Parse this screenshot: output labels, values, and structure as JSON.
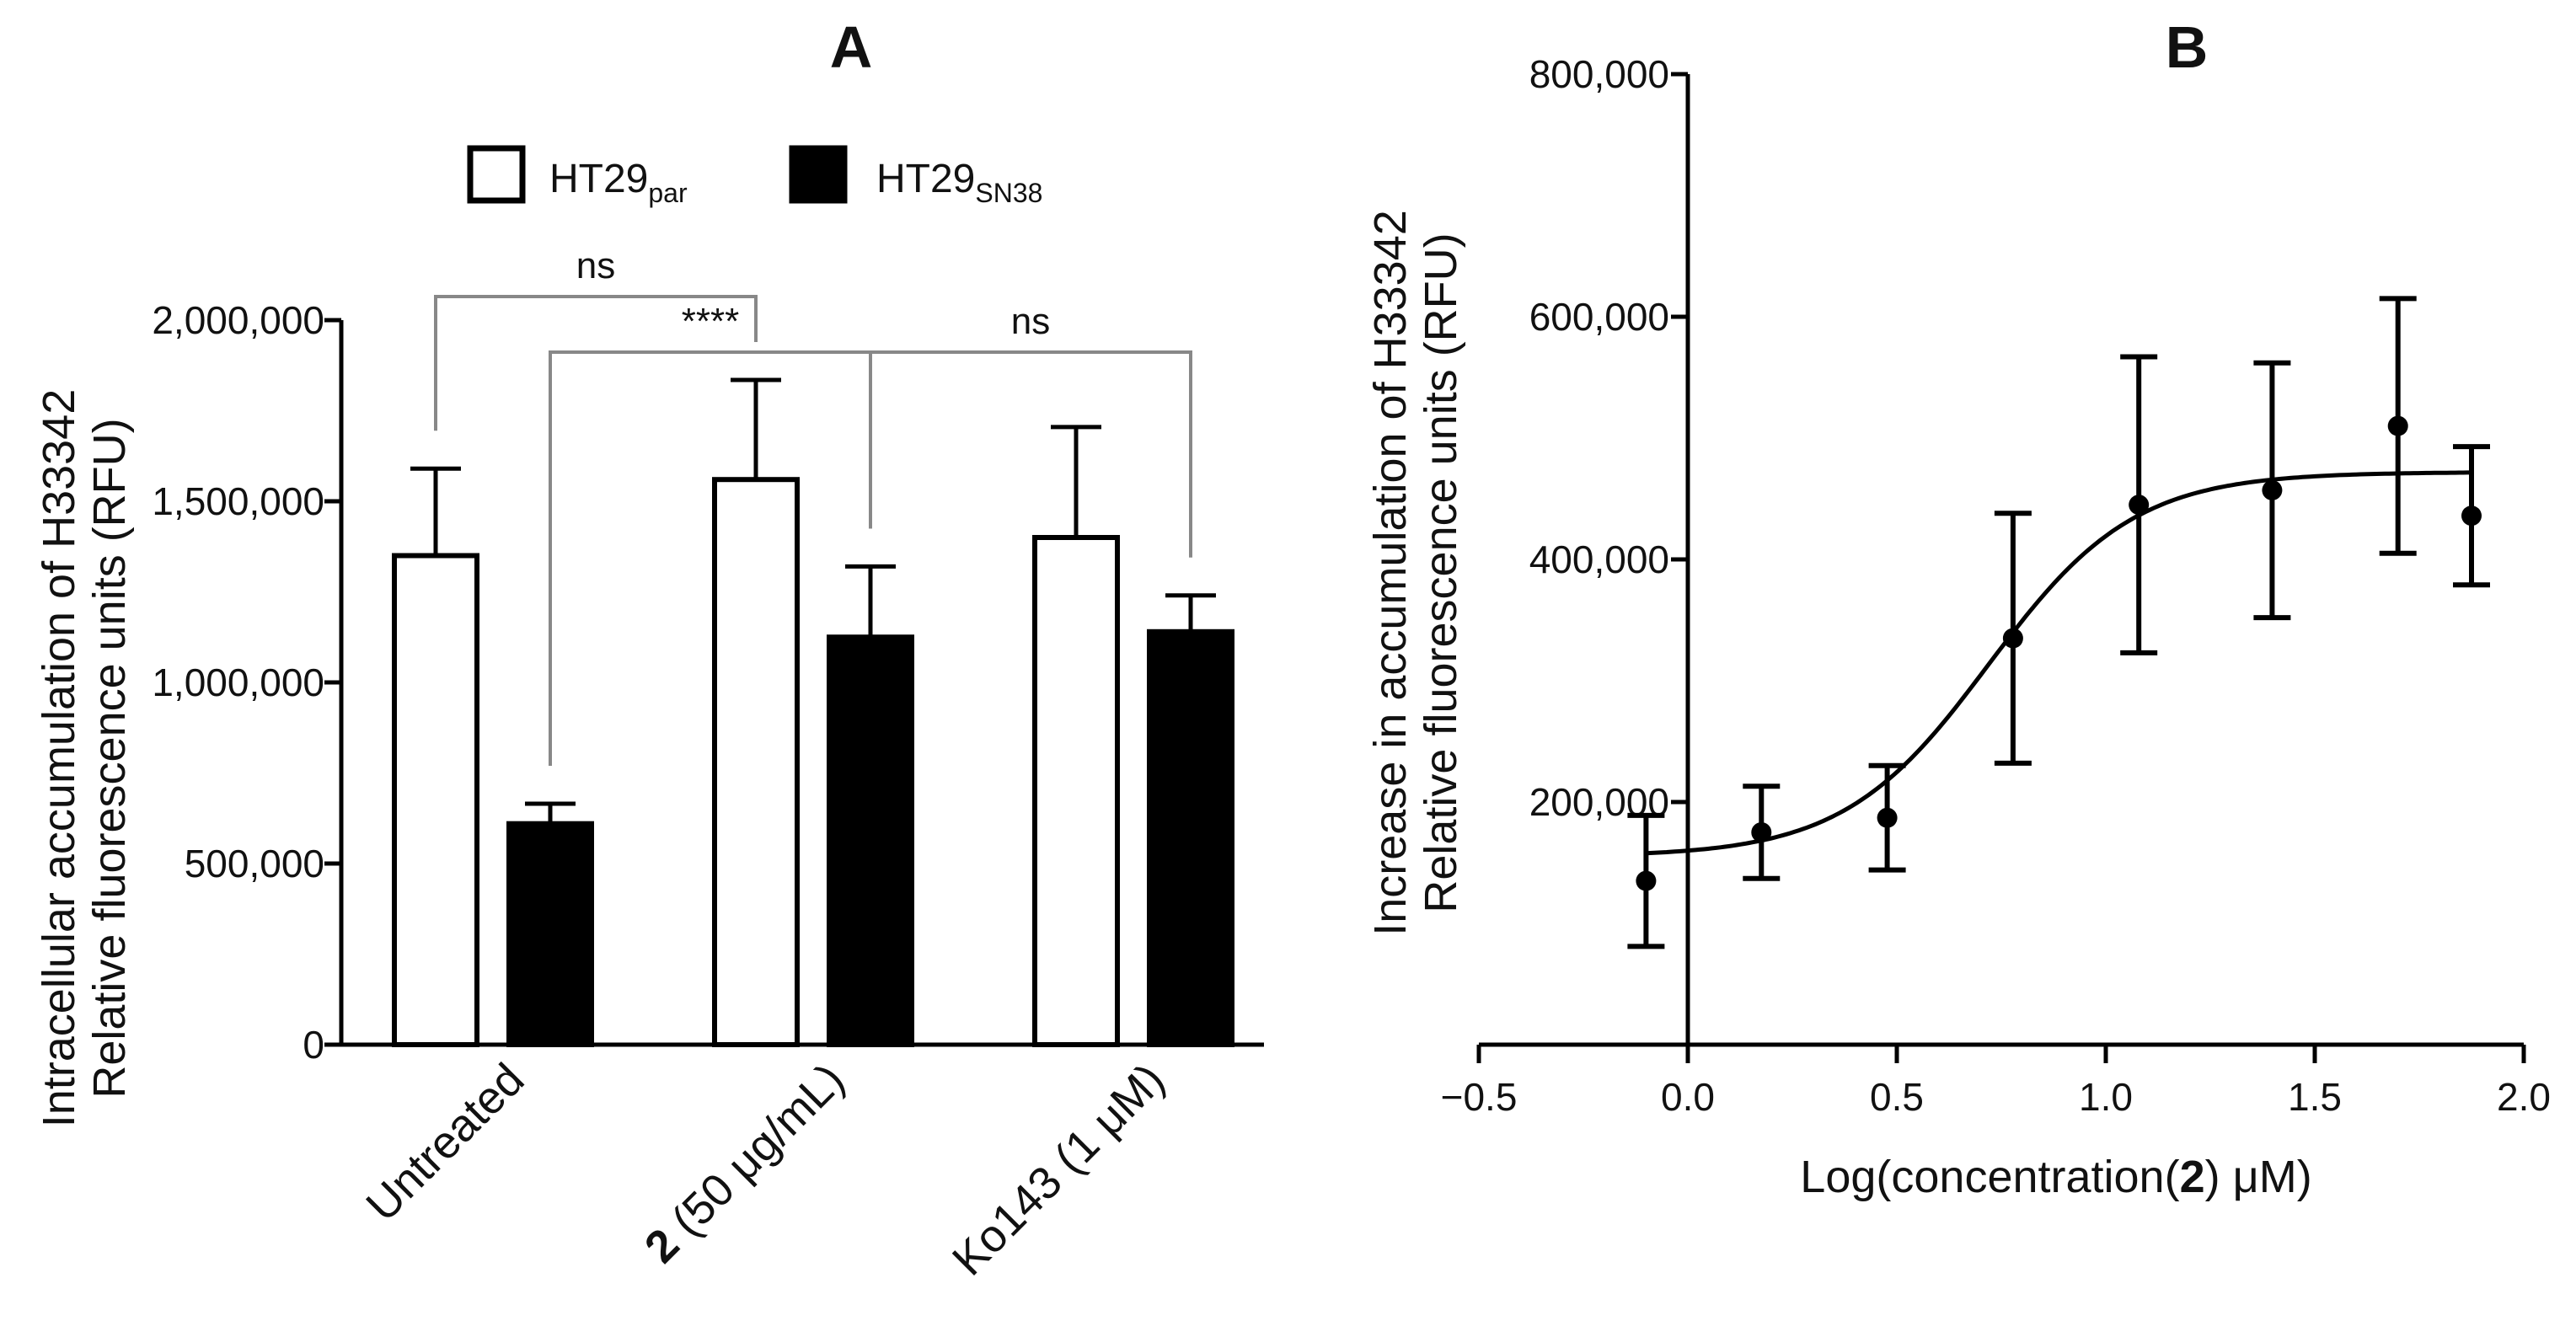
{
  "chart_data": [
    {
      "panel": "A",
      "type": "bar",
      "title": "A",
      "ylabel_line1": "Intracellular accumulation of H33342",
      "ylabel_line2": "Relative fluorescence units (RFU)",
      "xlabel": "",
      "ylim": [
        0,
        2000000
      ],
      "yticks": [
        0,
        500000,
        1000000,
        1500000,
        2000000
      ],
      "ytick_labels": [
        "0",
        "500,000",
        "1,000,000",
        "1,500,000",
        "2,000,000"
      ],
      "categories": [
        {
          "bold": "",
          "text": "Untreated"
        },
        {
          "bold": "2",
          "text": " (50 μg/mL)"
        },
        {
          "bold": "",
          "text": "Ko143 (1 μM)"
        }
      ],
      "series": [
        {
          "name": "HT29",
          "sub": "par",
          "fill": "#ffffff",
          "values": [
            1350000,
            1560000,
            1400000
          ],
          "errors": [
            240000,
            275000,
            305000
          ]
        },
        {
          "name": "HT29",
          "sub": "SN38",
          "fill": "#000000",
          "values": [
            610000,
            1125000,
            1140000
          ],
          "errors": [
            55000,
            195000,
            100000
          ]
        }
      ],
      "significance": [
        {
          "label": "ns",
          "from": [
            0,
            0
          ],
          "to": [
            1,
            0
          ]
        },
        {
          "label": "****",
          "from": [
            0,
            1
          ],
          "to": [
            1,
            1
          ]
        },
        {
          "label": "ns",
          "from": [
            1,
            1
          ],
          "to": [
            2,
            1
          ]
        }
      ]
    },
    {
      "panel": "B",
      "type": "scatter",
      "title": "B",
      "ylabel_line1": "Increase in accumulation of H33342",
      "ylabel_line2": "Relative fluorescence units (RFU)",
      "xlabel_pre": "Log(concentration(",
      "xlabel_bold": "2",
      "xlabel_post": ") μM)",
      "xlim": [
        -0.5,
        2.0
      ],
      "ylim": [
        0,
        800000
      ],
      "xticks": [
        -0.5,
        0.0,
        0.5,
        1.0,
        1.5,
        2.0
      ],
      "xtick_labels": [
        "−0.5",
        "0.0",
        "0.5",
        "1.0",
        "1.5",
        "2.0"
      ],
      "yticks": [
        200000,
        400000,
        600000,
        800000
      ],
      "ytick_labels": [
        "200,000",
        "400,000",
        "600,000",
        "800,000"
      ],
      "points": [
        {
          "x": -0.1,
          "y": 135000,
          "err": 54000
        },
        {
          "x": 0.176,
          "y": 175000,
          "err": 38000
        },
        {
          "x": 0.477,
          "y": 187000,
          "err": 43000
        },
        {
          "x": 0.778,
          "y": 335000,
          "err": 103000
        },
        {
          "x": 1.079,
          "y": 445000,
          "err": 122000
        },
        {
          "x": 1.398,
          "y": 457000,
          "err": 105000
        },
        {
          "x": 1.699,
          "y": 510000,
          "err": 105000
        },
        {
          "x": 1.875,
          "y": 436000,
          "err": 57000
        }
      ],
      "fit": {
        "model": "sigmoid",
        "bottom": 155000,
        "top": 472000,
        "logEC50": 0.72,
        "hill": 2.5,
        "x_start": -0.1,
        "x_end": 1.875
      }
    }
  ]
}
